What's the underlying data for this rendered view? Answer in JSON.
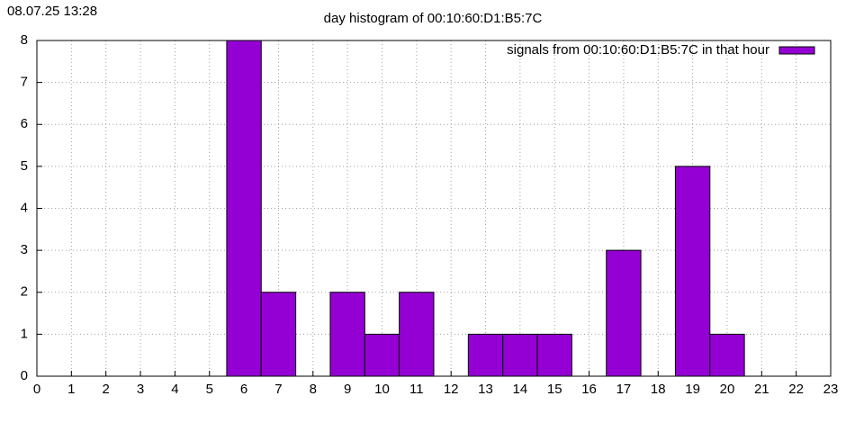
{
  "timestamp": "08.07.25 13:28",
  "chart_data": {
    "type": "bar",
    "title": "day histogram of 00:10:60:D1:B5:7C",
    "x": [
      6,
      7,
      9,
      10,
      11,
      13,
      14,
      15,
      17,
      19,
      20
    ],
    "series": [
      {
        "name": "signals from 00:10:60:D1:B5:7C in that hour",
        "color": "#9400d3",
        "values": [
          8,
          2,
          2,
          1,
          2,
          1,
          1,
          1,
          3,
          5,
          1
        ]
      }
    ],
    "xlim": [
      0,
      23
    ],
    "xticks": [
      0,
      1,
      2,
      3,
      4,
      5,
      6,
      7,
      8,
      9,
      10,
      11,
      12,
      13,
      14,
      15,
      16,
      17,
      18,
      19,
      20,
      21,
      22,
      23
    ],
    "ylim": [
      0,
      8
    ],
    "yticks": [
      0,
      1,
      2,
      3,
      4,
      5,
      6,
      7,
      8
    ],
    "grid": true,
    "legend": "top-right"
  }
}
